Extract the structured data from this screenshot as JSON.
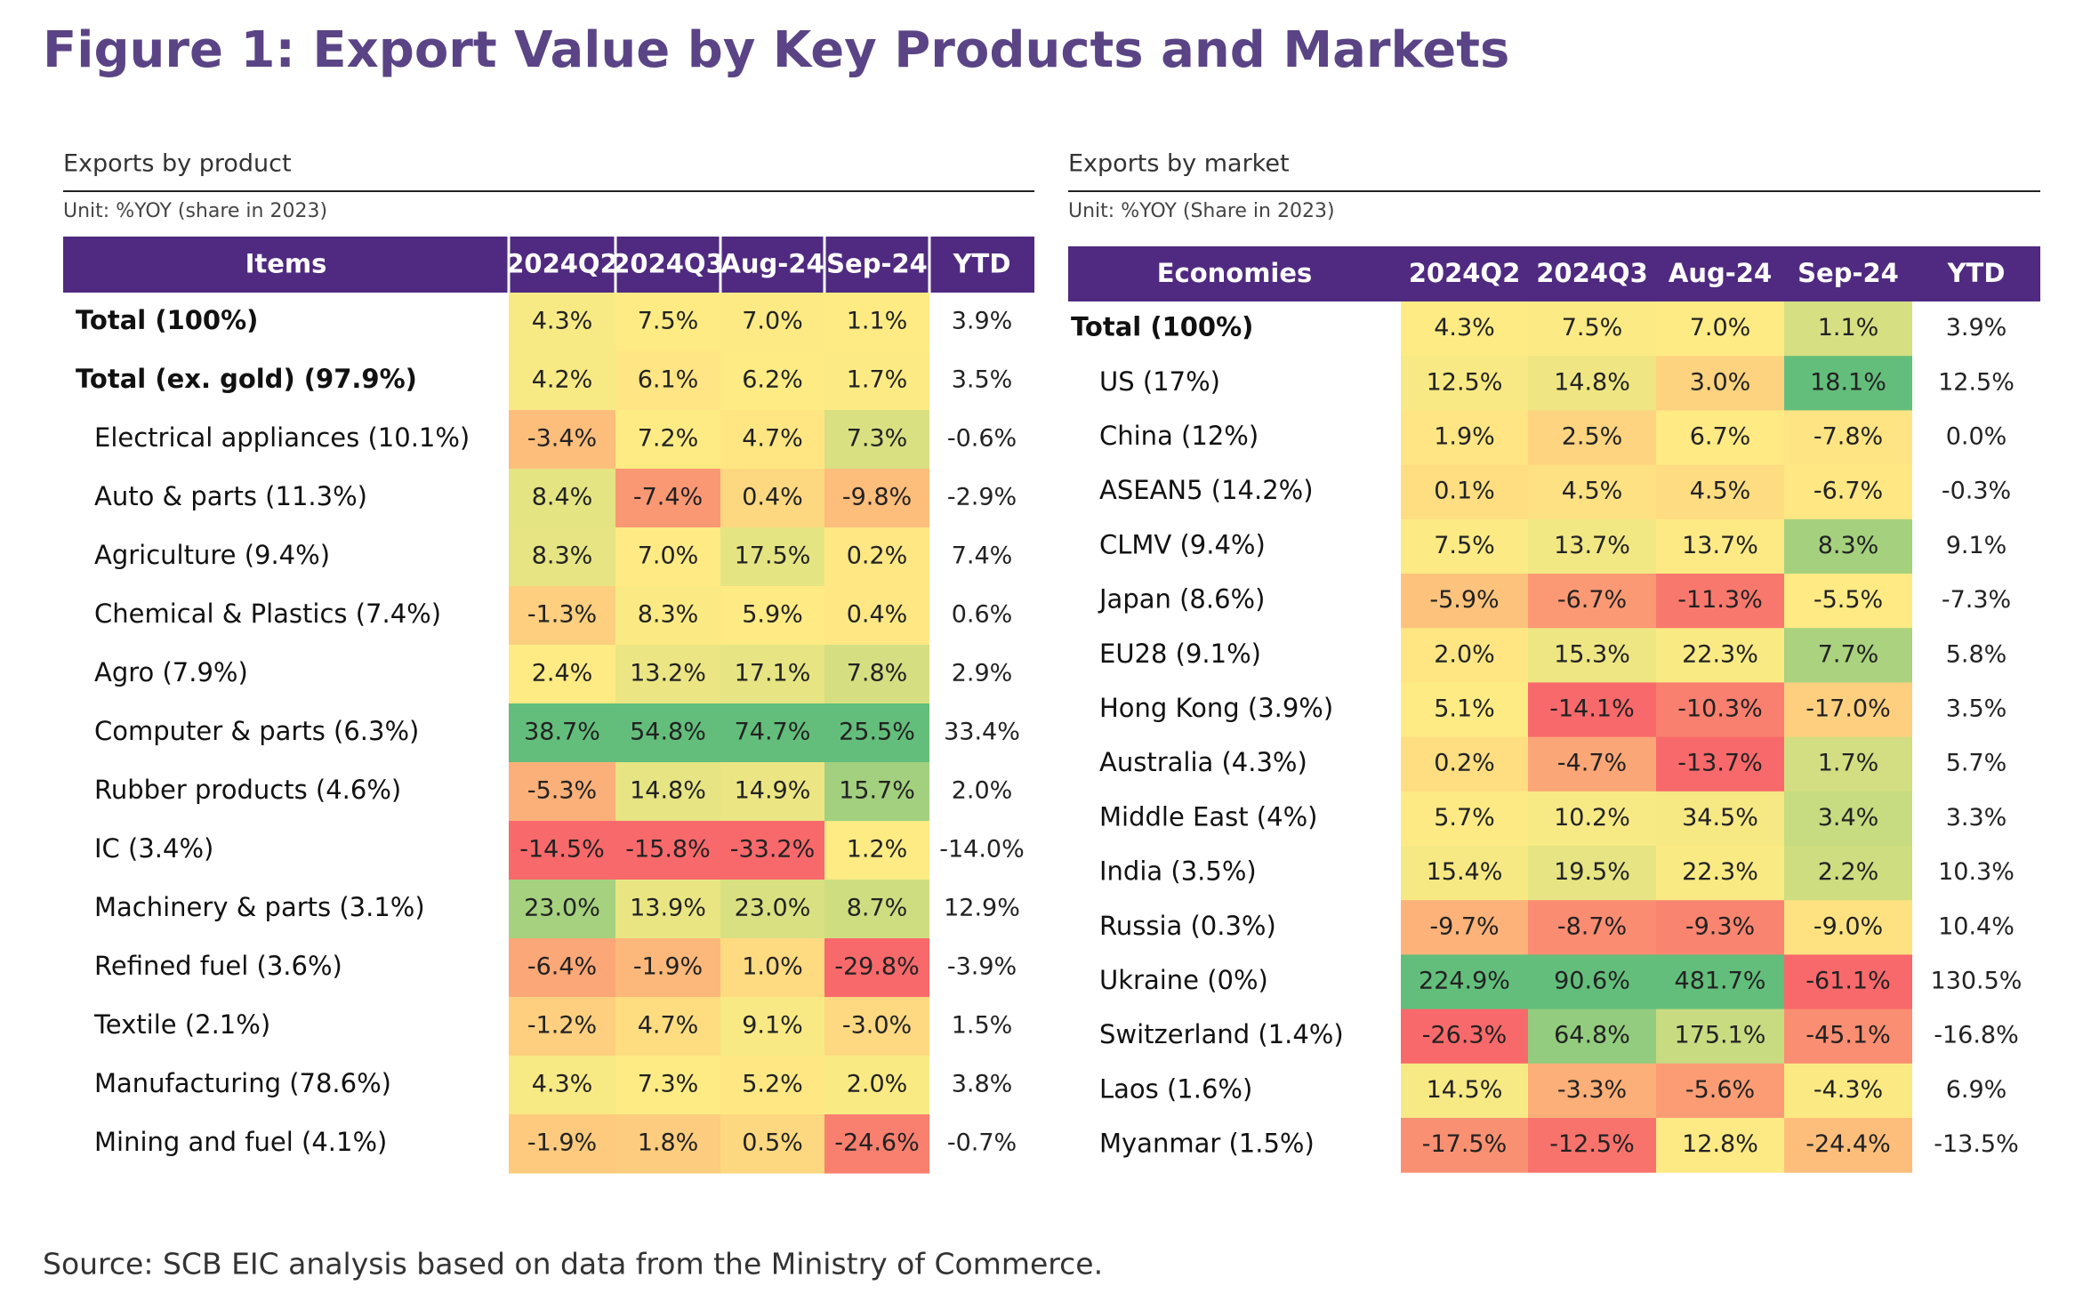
{
  "title": "Figure 1: Export Value by Key Products and Markets",
  "tables": [
    {
      "heading": "Exports by product",
      "unit": "Unit: %YOY (share in 2023)",
      "columns": [
        "Items",
        "2024Q2",
        "2024Q3",
        "Aug-24",
        "Sep-24",
        "YTD"
      ],
      "rows": [
        [
          "Total (100%)",
          "4.3%",
          "7.5%",
          "7.0%",
          "1.1%",
          "3.9%"
        ],
        [
          "Total (ex. gold) (97.9%)",
          "4.2%",
          "6.1%",
          "6.2%",
          "1.7%",
          "3.5%"
        ],
        [
          "Electrical appliances (10.1%)",
          "-3.4%",
          "7.2%",
          "4.7%",
          "7.3%",
          "-0.6%"
        ],
        [
          "Auto & parts (11.3%)",
          "8.4%",
          "-7.4%",
          "0.4%",
          "-9.8%",
          "-2.9%"
        ],
        [
          "Agriculture (9.4%)",
          "8.3%",
          "7.0%",
          "17.5%",
          "0.2%",
          "7.4%"
        ],
        [
          "Chemical & Plastics (7.4%)",
          "-1.3%",
          "8.3%",
          "5.9%",
          "0.4%",
          "0.6%"
        ],
        [
          "Agro (7.9%)",
          "2.4%",
          "13.2%",
          "17.1%",
          "7.8%",
          "2.9%"
        ],
        [
          "Computer & parts (6.3%)",
          "38.7%",
          "54.8%",
          "74.7%",
          "25.5%",
          "33.4%"
        ],
        [
          "Rubber products (4.6%)",
          "-5.3%",
          "14.8%",
          "14.9%",
          "15.7%",
          "2.0%"
        ],
        [
          "IC (3.4%)",
          "-14.5%",
          "-15.8%",
          "-33.2%",
          "1.2%",
          "-14.0%"
        ],
        [
          "Machinery & parts (3.1%)",
          "23.0%",
          "13.9%",
          "23.0%",
          "8.7%",
          "12.9%"
        ],
        [
          "Refined fuel (3.6%)",
          "-6.4%",
          "-1.9%",
          "1.0%",
          "-29.8%",
          "-3.9%"
        ],
        [
          "Textile (2.1%)",
          "-1.2%",
          "4.7%",
          "9.1%",
          "-3.0%",
          "1.5%"
        ],
        [
          "Manufacturing (78.6%)",
          "4.3%",
          "7.3%",
          "5.2%",
          "2.0%",
          "3.8%"
        ],
        [
          "Mining and fuel (4.1%)",
          "-1.9%",
          "1.8%",
          "0.5%",
          "-24.6%",
          "-0.7%"
        ]
      ]
    },
    {
      "heading": "Exports by market",
      "unit": "Unit: %YOY (Share in 2023)",
      "columns": [
        "Economies",
        "2024Q2",
        "2024Q3",
        "Aug-24",
        "Sep-24",
        "YTD"
      ],
      "rows": [
        [
          "Total (100%)",
          "4.3%",
          "7.5%",
          "7.0%",
          "1.1%",
          "3.9%"
        ],
        [
          "US (17%)",
          "12.5%",
          "14.8%",
          "3.0%",
          "18.1%",
          "12.5%"
        ],
        [
          "China (12%)",
          "1.9%",
          "2.5%",
          "6.7%",
          "-7.8%",
          "0.0%"
        ],
        [
          "ASEAN5 (14.2%)",
          "0.1%",
          "4.5%",
          "4.5%",
          "-6.7%",
          "-0.3%"
        ],
        [
          "CLMV (9.4%)",
          "7.5%",
          "13.7%",
          "13.7%",
          "8.3%",
          "9.1%"
        ],
        [
          "Japan (8.6%)",
          "-5.9%",
          "-6.7%",
          "-11.3%",
          "-5.5%",
          "-7.3%"
        ],
        [
          "EU28 (9.1%)",
          "2.0%",
          "15.3%",
          "22.3%",
          "7.7%",
          "5.8%"
        ],
        [
          "Hong Kong (3.9%)",
          "5.1%",
          "-14.1%",
          "-10.3%",
          "-17.0%",
          "3.5%"
        ],
        [
          "Australia (4.3%)",
          "0.2%",
          "-4.7%",
          "-13.7%",
          "1.7%",
          "5.7%"
        ],
        [
          "Middle East (4%)",
          "5.7%",
          "10.2%",
          "34.5%",
          "3.4%",
          "3.3%"
        ],
        [
          "India (3.5%)",
          "15.4%",
          "19.5%",
          "22.3%",
          "2.2%",
          "10.3%"
        ],
        [
          "Russia (0.3%)",
          "-9.7%",
          "-8.7%",
          "-9.3%",
          "-9.0%",
          "10.4%"
        ],
        [
          "Ukraine (0%)",
          "224.9%",
          "90.6%",
          "481.7%",
          "-61.1%",
          "130.5%"
        ],
        [
          "Switzerland (1.4%)",
          "-26.3%",
          "64.8%",
          "175.1%",
          "-45.1%",
          "-16.8%"
        ],
        [
          "Laos (1.6%)",
          "14.5%",
          "-3.3%",
          "-5.6%",
          "-4.3%",
          "6.9%"
        ],
        [
          "Myanmar (1.5%)",
          "-17.5%",
          "-12.5%",
          "12.8%",
          "-24.4%",
          "-13.5%"
        ]
      ]
    }
  ],
  "source": "Source: SCB EIC analysis based on data from the Ministry of Commerce."
}
